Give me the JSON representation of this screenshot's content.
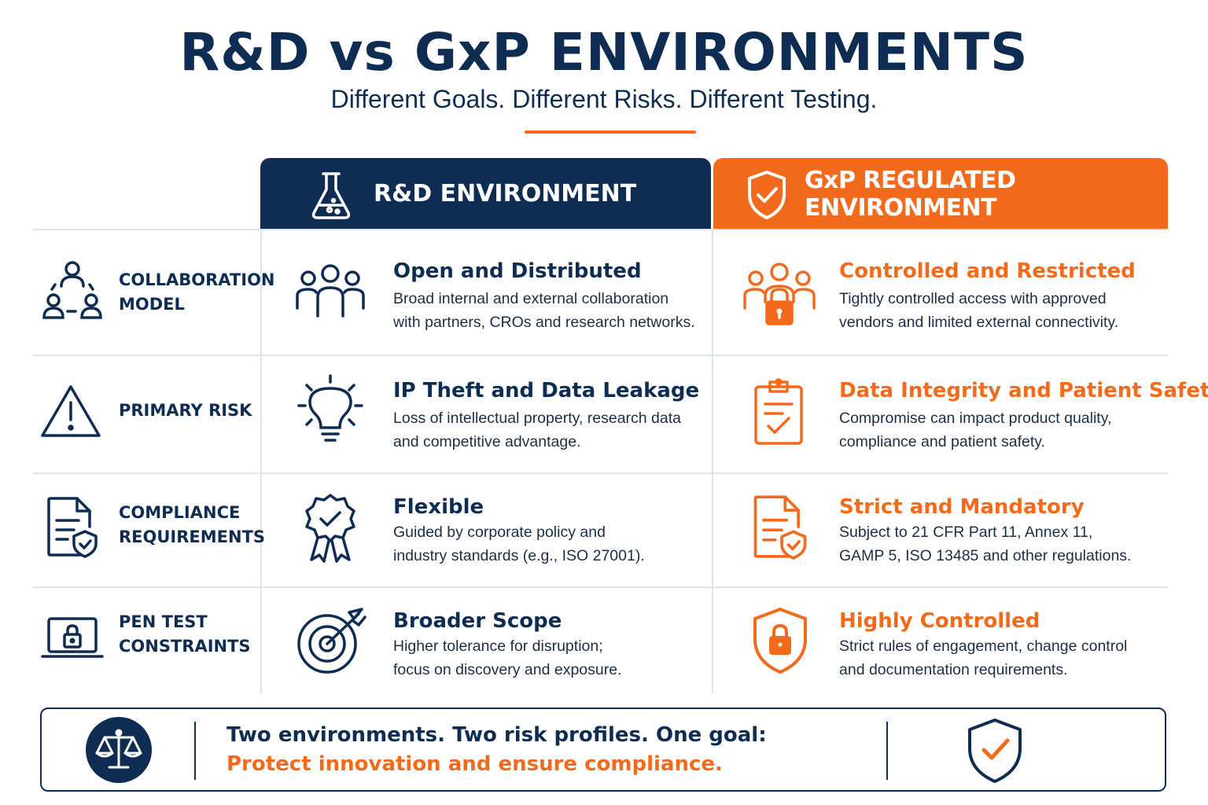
{
  "title": "R&D vs GxP ENVIRONMENTS",
  "subtitle": "Different Goals. Different Risks. Different Testing.",
  "columns": {
    "rd": {
      "label": "R&D ENVIRONMENT",
      "icon": "flask-icon"
    },
    "gxp": {
      "label": "GxP REGULATED ENVIRONMENT",
      "icon": "shield-check-icon"
    }
  },
  "rows": [
    {
      "label": "COLLABORATION\nMODEL",
      "icon": "collaboration-network-icon",
      "rd": {
        "title": "Open and Distributed",
        "desc": "Broad internal and external collaboration\nwith partners, CROs and research networks.",
        "icon": "group-icon"
      },
      "gxp": {
        "title": "Controlled and Restricted",
        "desc": "Tightly controlled access with approved\nvendors and limited external connectivity.",
        "icon": "group-lock-icon"
      }
    },
    {
      "label": "PRIMARY RISK",
      "icon": "warning-icon",
      "rd": {
        "title": "IP Theft and Data Leakage",
        "desc": "Loss of intellectual property, research data\nand competitive advantage.",
        "icon": "lightbulb-icon"
      },
      "gxp": {
        "title": "Data Integrity and Patient Safety",
        "desc": "Compromise can impact product quality,\ncompliance and patient safety.",
        "icon": "clipboard-check-icon"
      }
    },
    {
      "label": "COMPLIANCE\nREQUIREMENTS",
      "icon": "document-shield-icon",
      "rd": {
        "title": "Flexible",
        "desc": "Guided by corporate policy and\nindustry standards (e.g., ISO 27001).",
        "icon": "award-ribbon-icon"
      },
      "gxp": {
        "title": "Strict and Mandatory",
        "desc": "Subject to 21 CFR Part 11, Annex 11,\nGAMP 5, ISO 13485 and other regulations.",
        "icon": "document-shield-icon"
      }
    },
    {
      "label": "PEN TEST\nCONSTRAINTS",
      "icon": "laptop-lock-icon",
      "rd": {
        "title": "Broader Scope",
        "desc": "Higher tolerance for disruption;\nfocus on discovery and exposure.",
        "icon": "target-arrow-icon"
      },
      "gxp": {
        "title": "Highly Controlled",
        "desc": "Strict rules of engagement, change control\nand documentation requirements.",
        "icon": "shield-lock-icon"
      }
    }
  ],
  "footer": {
    "line1": "Two environments. Two risk profiles. One goal:",
    "line2": "Protect innovation and ensure compliance.",
    "left_icon": "scales-icon",
    "right_icon": "shield-check-icon"
  },
  "colors": {
    "navy": "#0f2d52",
    "orange": "#f26a1b",
    "divider": "#dde3ea"
  }
}
